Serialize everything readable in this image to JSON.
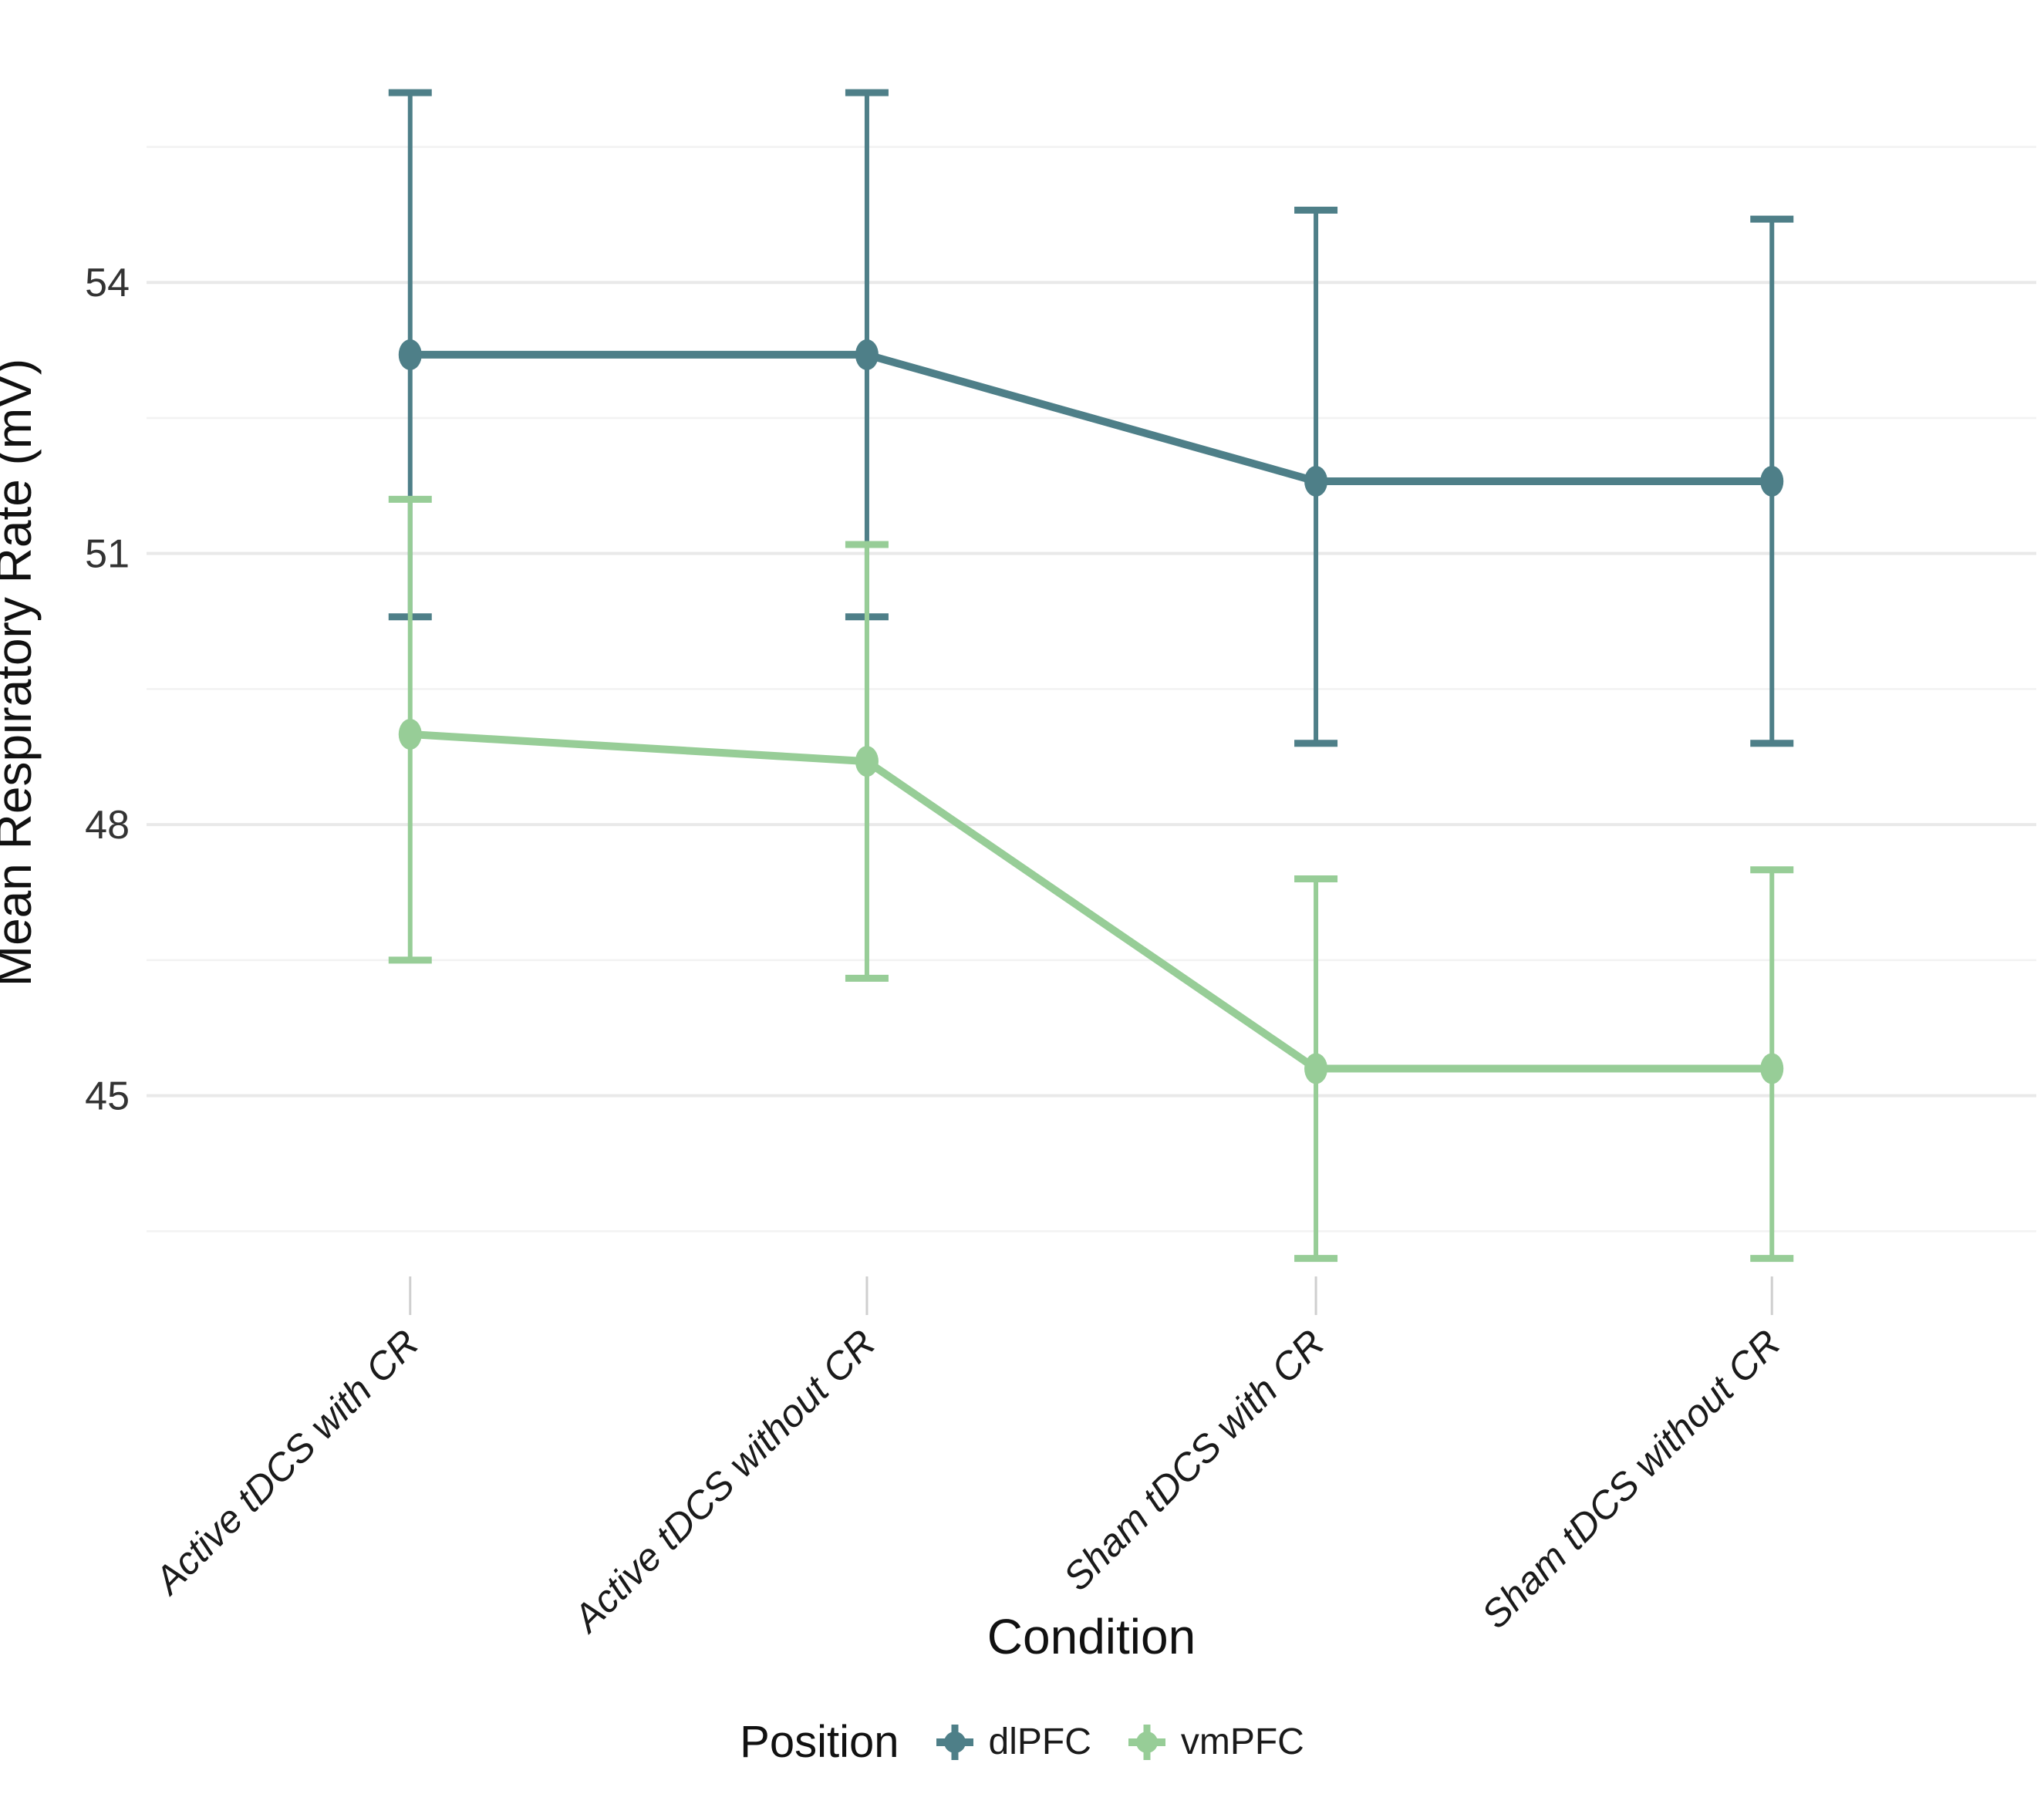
{
  "figure": {
    "background": "#ffffff",
    "gridline_major_color": "#e9e9e9",
    "gridline_minor_color": "#f2f2f2",
    "axis_tick_color": "#cfcfcf",
    "axis_text_color": "#333333",
    "title_text_color": "#111111"
  },
  "chart_data": {
    "type": "line",
    "subtype": "pointrange-with-error-bars",
    "title": "",
    "xlabel": "Condition",
    "ylabel": "Mean Respiratory Rate (mV)",
    "categories": [
      "Active tDCS with CR",
      "Active tDCS without CR",
      "Sham tDCS with CR",
      "Sham tDCS without CR"
    ],
    "yticks": [
      54,
      51,
      48,
      45
    ],
    "minor_yticks": [
      55.5,
      52.5,
      49.5,
      46.5,
      43.5
    ],
    "ylim": [
      43.0,
      56.4
    ],
    "grid": true,
    "legend_position": "bottom",
    "legend_title": "Position",
    "series": [
      {
        "name": "dlPFC",
        "color": "#4E7F88",
        "means": [
          53.2,
          53.2,
          51.8,
          51.8
        ],
        "upper": [
          56.1,
          56.1,
          54.8,
          54.7
        ],
        "lower": [
          50.3,
          50.3,
          48.9,
          48.9
        ]
      },
      {
        "name": "vmPFC",
        "color": "#97CD97",
        "means": [
          49.0,
          48.7,
          45.3,
          45.3
        ],
        "upper": [
          51.6,
          51.1,
          47.4,
          47.5
        ],
        "lower": [
          46.5,
          46.3,
          43.2,
          43.2
        ]
      }
    ]
  }
}
